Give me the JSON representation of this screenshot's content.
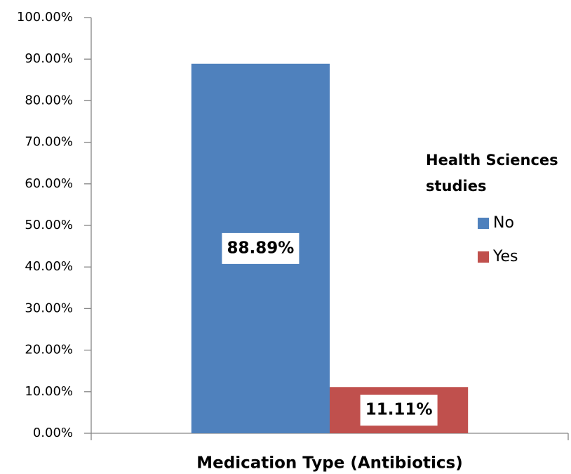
{
  "chart_data": {
    "type": "bar",
    "categories": [
      null
    ],
    "x_label": "Medication Type (Antibiotics)",
    "series": [
      {
        "name": "No",
        "color": "#4f81bd",
        "values": [
          88.89
        ],
        "value_labels": [
          "88.89%"
        ]
      },
      {
        "name": "Yes",
        "color": "#c0504d",
        "values": [
          11.11
        ],
        "value_labels": [
          "11.11%"
        ]
      }
    ],
    "legend_title": "Health Sciences studies",
    "legend": "right",
    "ylim": [
      0,
      100
    ],
    "yticks": [
      {
        "value": 0,
        "label": "0.00%"
      },
      {
        "value": 10,
        "label": "10.00%"
      },
      {
        "value": 20,
        "label": "20.00%"
      },
      {
        "value": 30,
        "label": "30.00%"
      },
      {
        "value": 40,
        "label": "40.00%"
      },
      {
        "value": 50,
        "label": "50.00%"
      },
      {
        "value": 60,
        "label": "60.00%"
      },
      {
        "value": 70,
        "label": "70.00%"
      },
      {
        "value": 80,
        "label": "80.00%"
      },
      {
        "value": 90,
        "label": "90.00%"
      },
      {
        "value": 100,
        "label": "100.00%"
      }
    ],
    "grid": false
  }
}
